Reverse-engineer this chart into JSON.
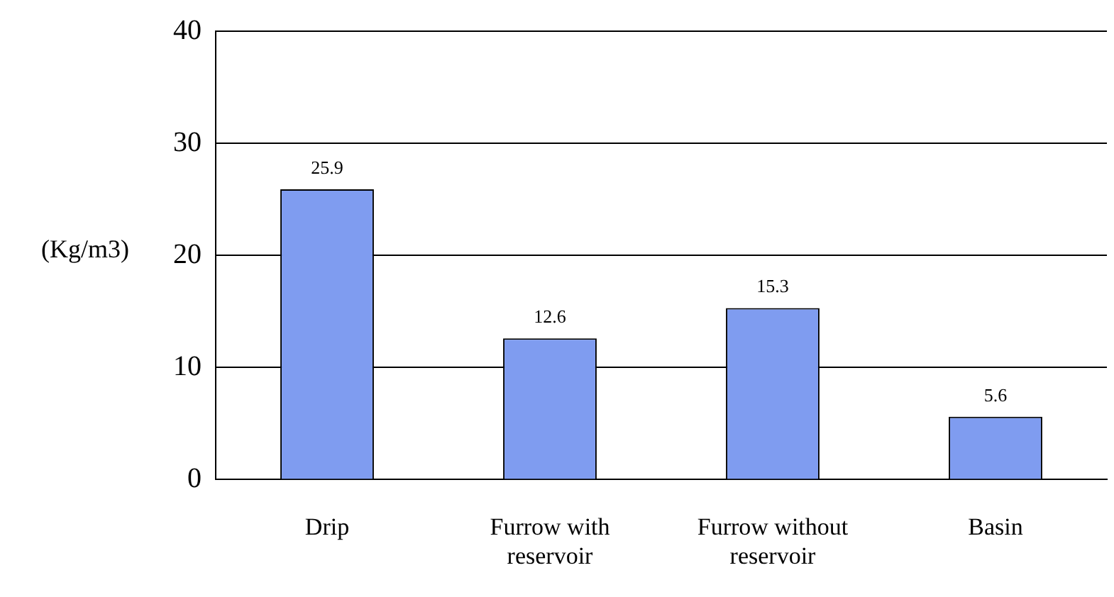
{
  "chart_data": {
    "type": "bar",
    "ylabel": "(Kg/m3)",
    "categories": [
      "Drip",
      "Furrow with reservoir",
      "Furrow without reservoir",
      "Basin"
    ],
    "values": [
      25.9,
      12.6,
      15.3,
      5.6
    ],
    "color": "#7f9cf0",
    "ylim": [
      0,
      40
    ],
    "yticks": [
      0,
      10,
      20,
      30,
      40
    ],
    "grid": "y",
    "data_labels": true
  }
}
